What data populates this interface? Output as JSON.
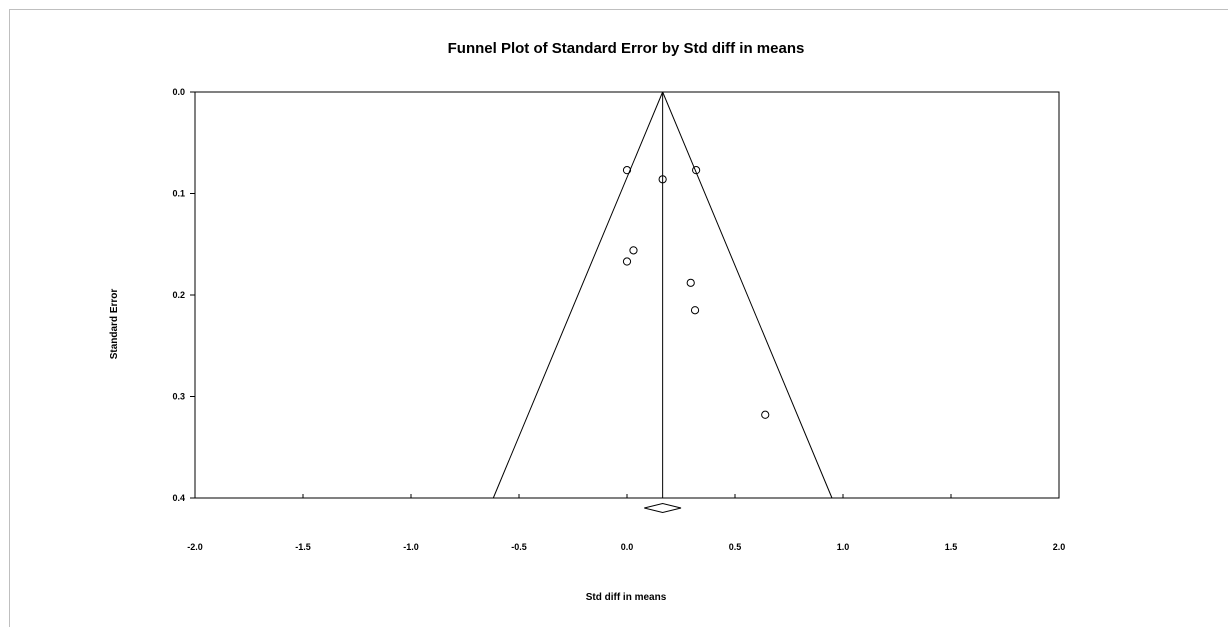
{
  "chart_data": {
    "type": "scatter",
    "title": "Funnel Plot of Standard Error by Std diff in means",
    "xlabel": "Std diff in means",
    "ylabel": "Standard Error",
    "xlim": [
      -2.0,
      2.0
    ],
    "ylim": [
      0.0,
      0.4
    ],
    "y_axis_inverted": true,
    "x_ticks": [
      "-2.0",
      "-1.5",
      "-1.0",
      "-0.5",
      "0.0",
      "0.5",
      "1.0",
      "1.5",
      "2.0"
    ],
    "y_ticks": [
      "0.0",
      "0.1",
      "0.2",
      "0.3",
      "0.4"
    ],
    "grid": false,
    "summary_effect": 0.165,
    "funnel_half_width_factor": 1.96,
    "points": [
      {
        "x": 0.0,
        "y": 0.077
      },
      {
        "x": 0.165,
        "y": 0.086
      },
      {
        "x": 0.32,
        "y": 0.077
      },
      {
        "x": 0.03,
        "y": 0.156
      },
      {
        "x": 0.0,
        "y": 0.167
      },
      {
        "x": 0.295,
        "y": 0.188
      },
      {
        "x": 0.315,
        "y": 0.215
      },
      {
        "x": 0.64,
        "y": 0.318
      }
    ],
    "summary_diamond": {
      "center": 0.165,
      "lower": 0.08,
      "upper": 0.25
    }
  },
  "colors": {
    "line": "#000000",
    "frame": "#bfbfbf",
    "background": "#ffffff"
  }
}
